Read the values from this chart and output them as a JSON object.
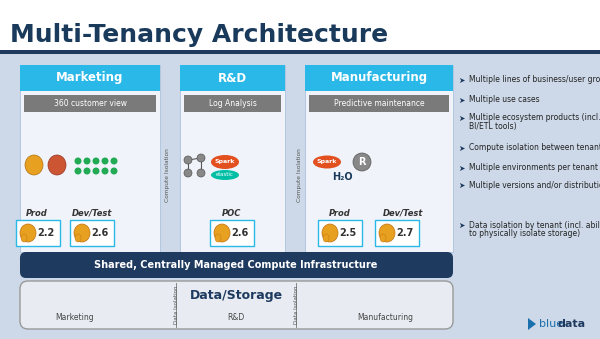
{
  "title": "Multi-Tenancy Architecture",
  "title_color": "#1a3a5c",
  "white": "#ffffff",
  "bg_color": "#cdd9e8",
  "dark_blue": "#1e3a5f",
  "cyan_blue": "#29b8e8",
  "gray_bar": "#7a7a7a",
  "light_panel": "#f0f4fa",
  "compute_bar_color": "#1e3a5f",
  "storage_bg": "#e8ecf2",
  "storage_border": "#999999",
  "tenant_names": [
    "Marketing",
    "R&D",
    "Manufacturing"
  ],
  "sub_labels": [
    "360 customer view",
    "Log Analysis",
    "Predictive maintenance"
  ],
  "bullets": [
    "Multiple lines of business/user groups",
    "Multiple use cases",
    "Multiple ecosystem products (incl. non-H\nBI/ETL tools)",
    "Compute isolation between tenants",
    "Multiple environments per tenant",
    "Multiple versions and/or distributions",
    "Data isolation by tenant (incl. ability\nto physically isolate storage)"
  ],
  "compute_label": "Shared, Centrally Managed Compute Infrastructure",
  "storage_label": "Data/Storage",
  "storage_subs": [
    "Marketing",
    "R&D",
    "Manufacturing"
  ],
  "versions_mkt": [
    "2.2",
    "2.6"
  ],
  "versions_rd": [
    "2.6"
  ],
  "versions_mfg": [
    "2.5",
    "2.7"
  ],
  "env_mkt": [
    "Prod",
    "Dev/Test"
  ],
  "env_rd": [
    "POC"
  ],
  "env_mfg": [
    "Prod",
    "Dev/Test"
  ],
  "brand_blue": "#1a6fad",
  "brand_dark": "#1e3a5f"
}
